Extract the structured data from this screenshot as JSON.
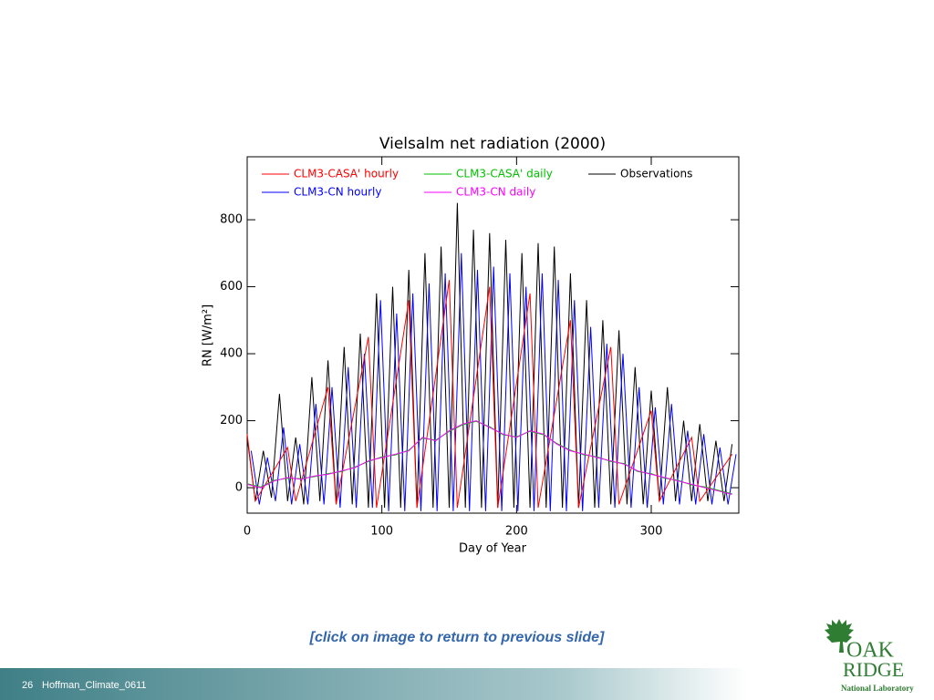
{
  "chart_data": {
    "type": "line",
    "title": "Vielsalm net radiation (2000)",
    "xlabel": "Day of Year",
    "ylabel": "RN [W/m²]",
    "xlim": [
      0,
      365
    ],
    "xticks": [
      0,
      100,
      200,
      300
    ],
    "ylim": [
      -76,
      988
    ],
    "yticks": [
      0,
      200,
      400,
      600,
      800
    ],
    "grid": false,
    "series": [
      {
        "name": "CLM3-CASA' hourly",
        "color": "#ff0000",
        "x": [
          0,
          6,
          30,
          36,
          60,
          66,
          90,
          96,
          120,
          126,
          150,
          156,
          180,
          186,
          210,
          216,
          240,
          246,
          270,
          276,
          300,
          306,
          330,
          336,
          360
        ],
        "values": [
          160,
          -40,
          120,
          -40,
          300,
          -50,
          450,
          -60,
          560,
          -60,
          620,
          -60,
          600,
          -60,
          580,
          -60,
          500,
          -60,
          420,
          -50,
          230,
          -40,
          150,
          -40,
          100
        ]
      },
      {
        "name": "CLM3-CASA' daily",
        "color": "#00c000",
        "x": [
          0,
          10,
          20,
          30,
          40,
          50,
          60,
          70,
          80,
          90,
          100,
          110,
          120,
          130,
          140,
          150,
          160,
          170,
          180,
          190,
          200,
          210,
          220,
          230,
          240,
          250,
          260,
          270,
          280,
          290,
          300,
          310,
          320,
          330,
          340,
          350,
          360
        ],
        "values": [
          12,
          2,
          22,
          28,
          27,
          33,
          42,
          48,
          62,
          78,
          92,
          98,
          112,
          148,
          142,
          168,
          188,
          198,
          182,
          158,
          152,
          168,
          158,
          132,
          112,
          98,
          92,
          78,
          72,
          48,
          42,
          28,
          22,
          8,
          2,
          -8,
          -18
        ]
      },
      {
        "name": "Observations",
        "color": "#000000",
        "x": [
          0,
          6,
          12,
          18,
          24,
          30,
          36,
          42,
          48,
          54,
          60,
          66,
          72,
          78,
          84,
          90,
          96,
          102,
          108,
          114,
          120,
          126,
          132,
          138,
          144,
          150,
          156,
          162,
          168,
          174,
          180,
          186,
          192,
          198,
          204,
          210,
          216,
          222,
          228,
          234,
          240,
          246,
          252,
          258,
          264,
          270,
          276,
          282,
          288,
          294,
          300,
          306,
          312,
          318,
          324,
          330,
          336,
          342,
          348,
          354,
          360
        ],
        "values": [
          150,
          -40,
          110,
          -30,
          280,
          -40,
          150,
          -50,
          330,
          -40,
          380,
          -50,
          420,
          -50,
          460,
          -60,
          580,
          -60,
          600,
          -60,
          650,
          -60,
          700,
          -60,
          720,
          -60,
          850,
          -60,
          770,
          -60,
          760,
          -60,
          740,
          -60,
          700,
          -60,
          730,
          -60,
          720,
          -60,
          640,
          -60,
          560,
          -60,
          500,
          -50,
          470,
          -50,
          360,
          -50,
          290,
          -40,
          300,
          -40,
          200,
          -40,
          190,
          -40,
          140,
          -40,
          130
        ]
      },
      {
        "name": "CLM3-CN hourly",
        "color": "#0000ff",
        "x": [
          3,
          9,
          15,
          21,
          27,
          33,
          39,
          45,
          51,
          57,
          63,
          69,
          75,
          81,
          87,
          93,
          99,
          105,
          111,
          117,
          123,
          129,
          135,
          141,
          147,
          153,
          159,
          165,
          171,
          177,
          183,
          189,
          195,
          201,
          207,
          213,
          219,
          225,
          231,
          237,
          243,
          249,
          255,
          261,
          267,
          273,
          279,
          285,
          291,
          297,
          303,
          309,
          315,
          321,
          327,
          333,
          339,
          345,
          351,
          357,
          363
        ],
        "values": [
          110,
          -50,
          90,
          -40,
          180,
          -50,
          130,
          -50,
          250,
          -50,
          300,
          -60,
          360,
          -60,
          400,
          -60,
          560,
          -70,
          520,
          -70,
          580,
          -70,
          610,
          -70,
          640,
          -70,
          700,
          -70,
          650,
          -70,
          660,
          -70,
          640,
          -70,
          600,
          -70,
          640,
          -70,
          620,
          -70,
          560,
          -70,
          480,
          -60,
          430,
          -60,
          400,
          -60,
          300,
          -60,
          240,
          -50,
          250,
          -50,
          170,
          -50,
          160,
          -50,
          120,
          -50,
          100
        ]
      },
      {
        "name": "CLM3-CN daily",
        "color": "#ff00ff",
        "x": [
          0,
          10,
          20,
          30,
          40,
          50,
          60,
          70,
          80,
          90,
          100,
          110,
          120,
          130,
          140,
          150,
          160,
          170,
          180,
          190,
          200,
          210,
          220,
          230,
          240,
          250,
          260,
          270,
          280,
          290,
          300,
          310,
          320,
          330,
          340,
          350,
          360
        ],
        "values": [
          10,
          0,
          20,
          30,
          25,
          35,
          40,
          50,
          60,
          80,
          90,
          100,
          110,
          150,
          140,
          170,
          190,
          200,
          180,
          160,
          150,
          170,
          160,
          130,
          110,
          100,
          90,
          80,
          70,
          50,
          40,
          30,
          20,
          10,
          0,
          -10,
          -20
        ]
      }
    ]
  },
  "link": "[click on image to return to previous slide]",
  "footer": {
    "page": "26",
    "text": "Hoffman_Climate_0611"
  },
  "logo": {
    "line1": "OAK",
    "line2": "RIDGE",
    "line3": "National Laboratory"
  }
}
